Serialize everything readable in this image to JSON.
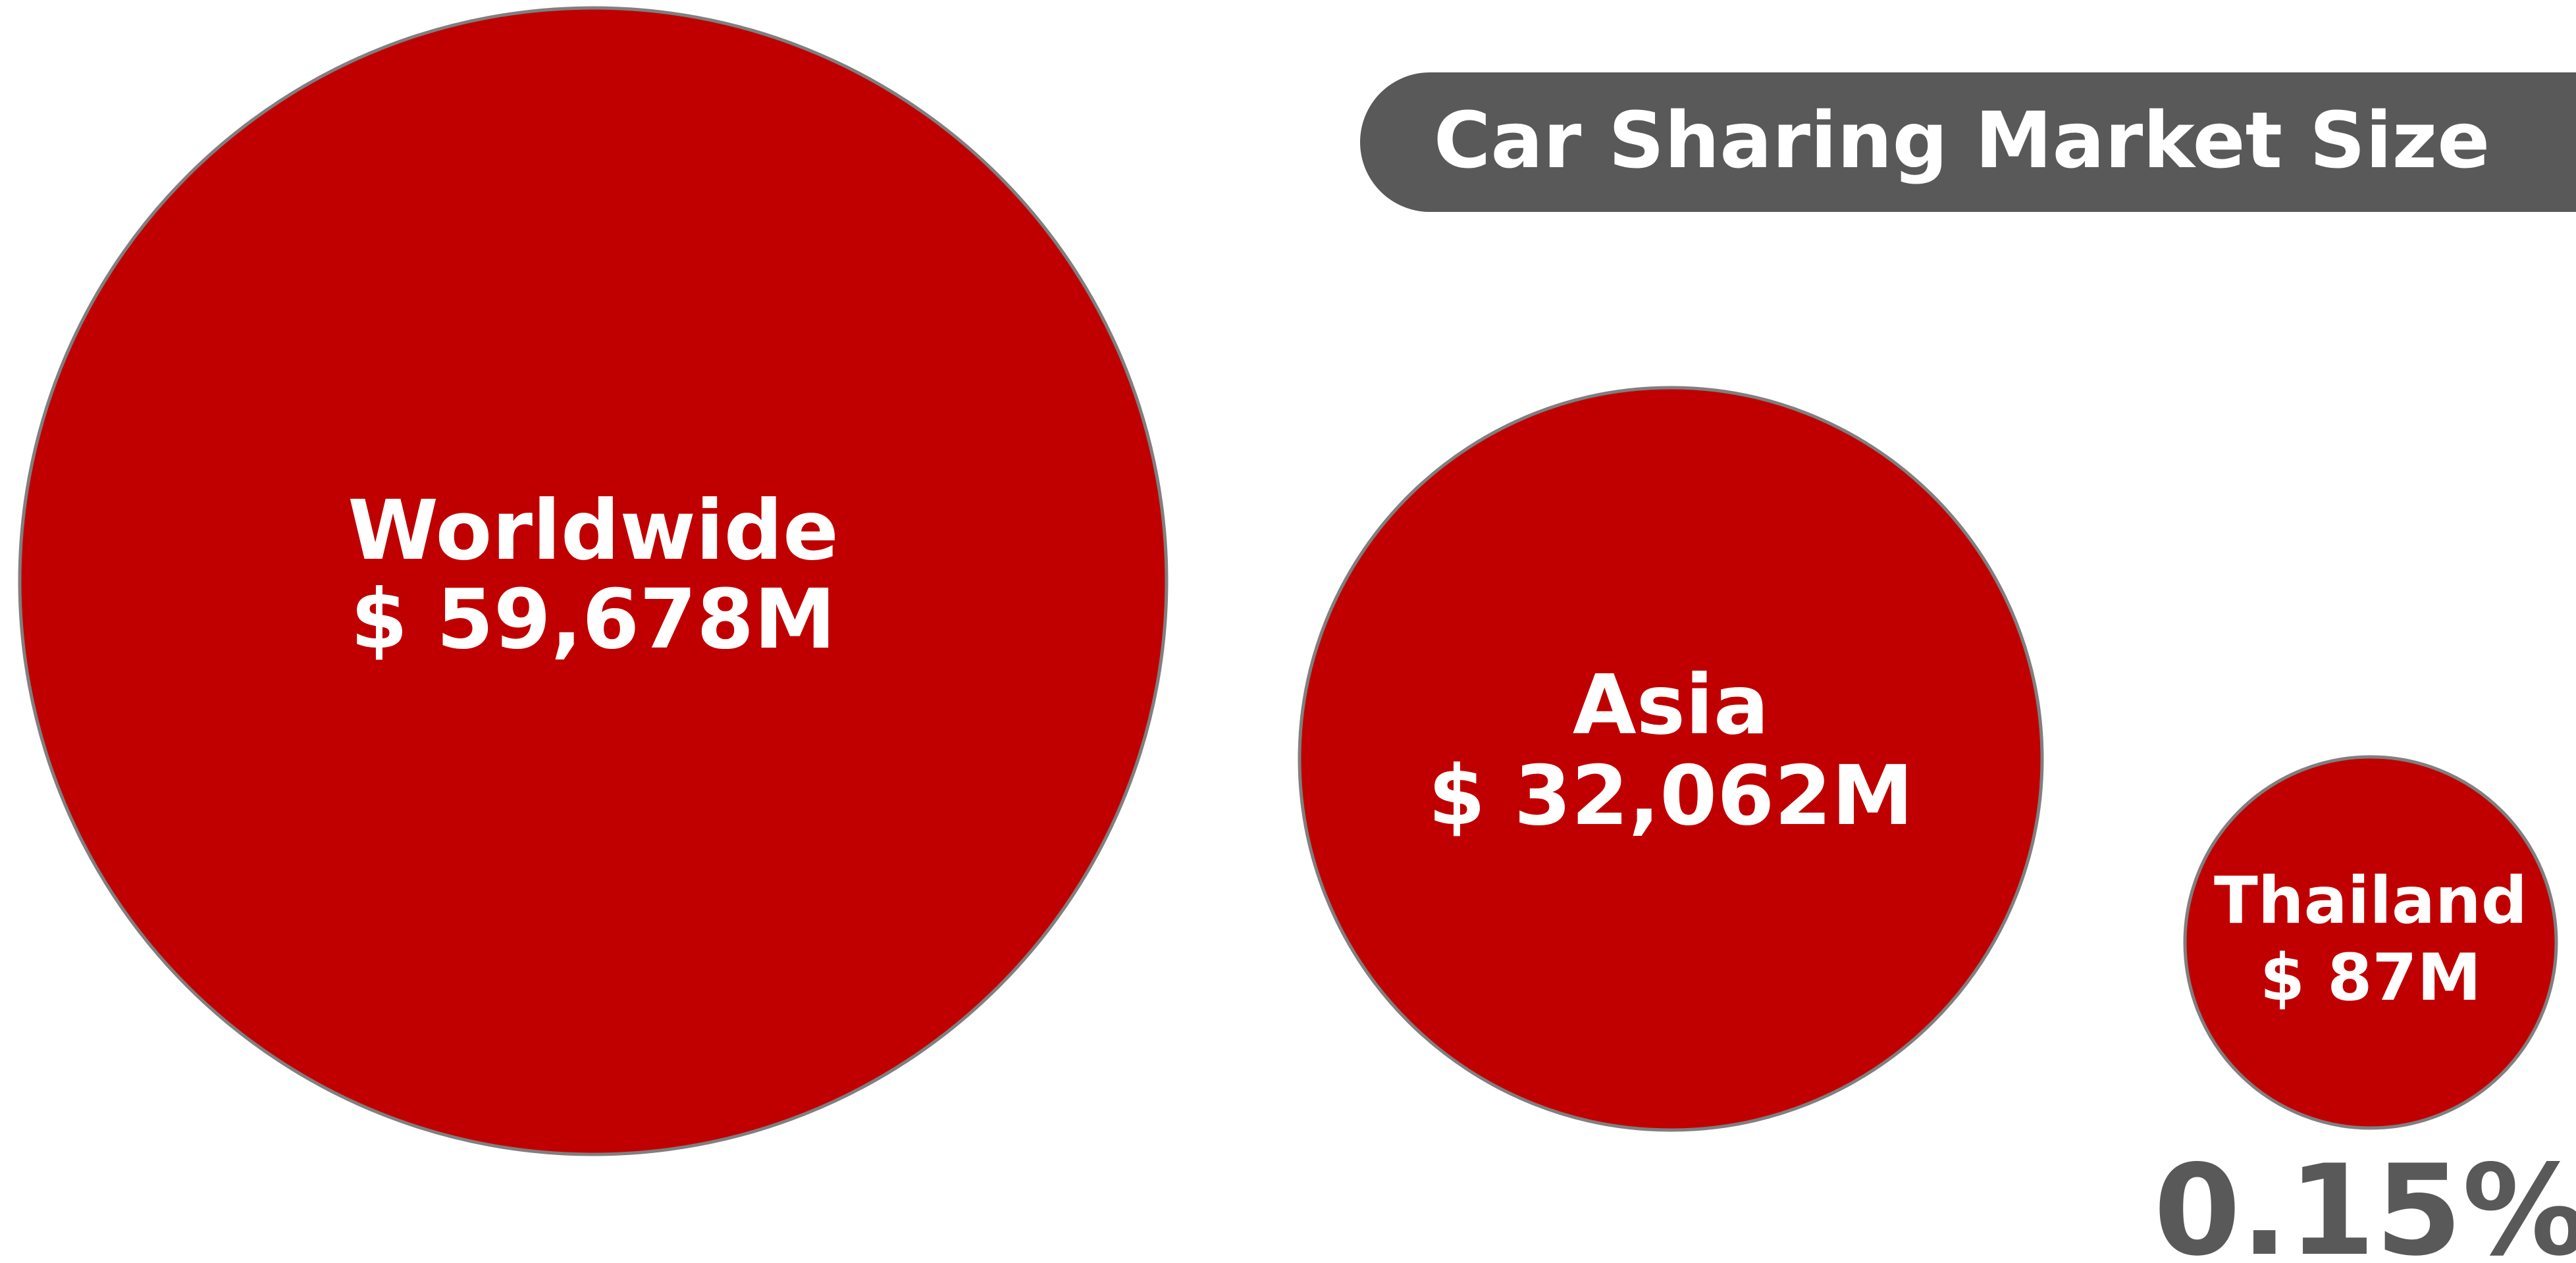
{
  "title": "Car Sharing Market Size",
  "regions": [
    {
      "name": "Worldwide",
      "value": "$ 59,678M"
    },
    {
      "name": "Asia",
      "value": "$ 32,062M"
    },
    {
      "name": "Thailand",
      "value": "$ 87M"
    }
  ],
  "share": "0.15%"
}
